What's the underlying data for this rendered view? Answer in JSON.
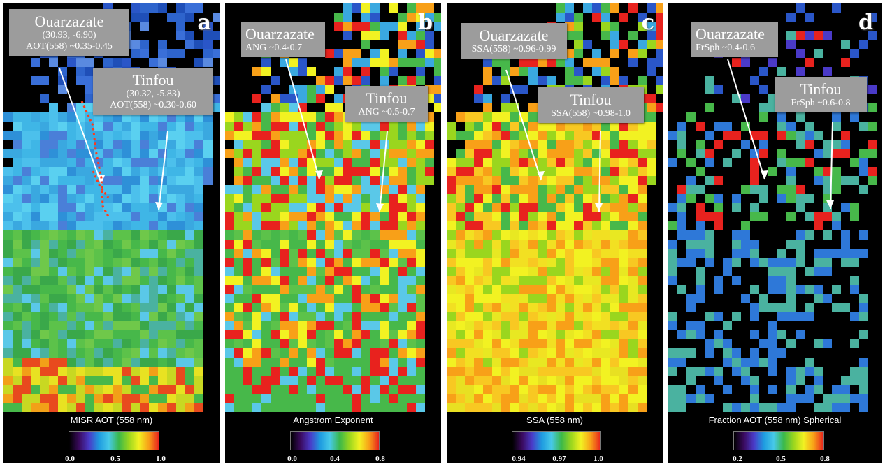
{
  "panels": [
    {
      "letter": "a",
      "colorbar_title": "MISR AOT (558 nm)",
      "ticks": [
        "0.0",
        "0.5",
        "1.0"
      ],
      "callouts": [
        {
          "name": "Ouarzazate",
          "lines": [
            "(30.93, -6.90)",
            "AOT(558) ~0.35-0.45"
          ]
        },
        {
          "name": "Tinfou",
          "lines": [
            "(30.32, -5.83)",
            "AOT(558) ~0.30-0.60"
          ]
        }
      ]
    },
    {
      "letter": "b",
      "colorbar_title": "Angstrom Exponent",
      "ticks": [
        "0.0",
        "0.4",
        "0.8"
      ],
      "callouts": [
        {
          "name": "Ouarzazate",
          "lines": [
            "ANG ~0.4-0.7"
          ]
        },
        {
          "name": "Tinfou",
          "lines": [
            "ANG ~0.5-0.7"
          ]
        }
      ]
    },
    {
      "letter": "c",
      "colorbar_title": "SSA (558 nm)",
      "ticks": [
        "0.94",
        "0.97",
        "1.0"
      ],
      "callouts": [
        {
          "name": "Ouarzazate",
          "lines": [
            "SSA(558) ~0.96-0.99"
          ]
        },
        {
          "name": "Tinfou",
          "lines": [
            "SSA(558) ~0.98-1.0"
          ]
        }
      ]
    },
    {
      "letter": "d",
      "colorbar_title": "Fraction AOT (558 nm) Spherical",
      "ticks": [
        "0.2",
        "0.5",
        "0.8"
      ],
      "callouts": [
        {
          "name": "Ouarzazate",
          "lines": [
            "FrSph ~0.4-0.6"
          ]
        },
        {
          "name": "Tinfou",
          "lines": [
            "FrSph ~0.6-0.8"
          ]
        }
      ]
    }
  ]
}
